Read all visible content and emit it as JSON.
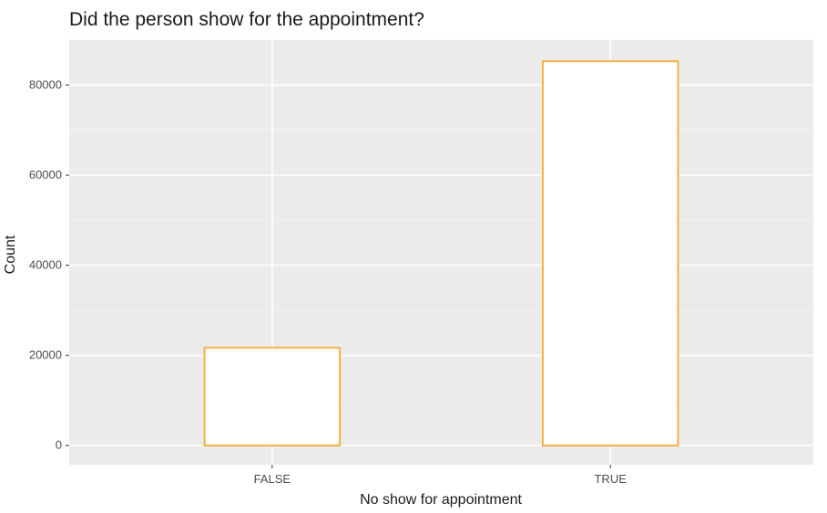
{
  "chart_data": {
    "type": "bar",
    "title": "Did the person show for the appointment?",
    "xlabel": "No show for appointment",
    "ylabel": "Count",
    "categories": [
      "FALSE",
      "TRUE"
    ],
    "values": [
      21680,
      85307
    ],
    "ylim": [
      -4300,
      90000
    ],
    "yticks": [
      0,
      20000,
      40000,
      60000,
      80000
    ],
    "ytick_labels": [
      "0",
      "20000",
      "40000",
      "60000",
      "80000"
    ],
    "grid": true,
    "legend": "none",
    "colors": {
      "panel_background": "#ebebeb",
      "grid_major": "#ffffff",
      "grid_minor": "#f4f4f4",
      "bar_fill": "#ffffff",
      "bar_outline": "#f5b041"
    }
  }
}
